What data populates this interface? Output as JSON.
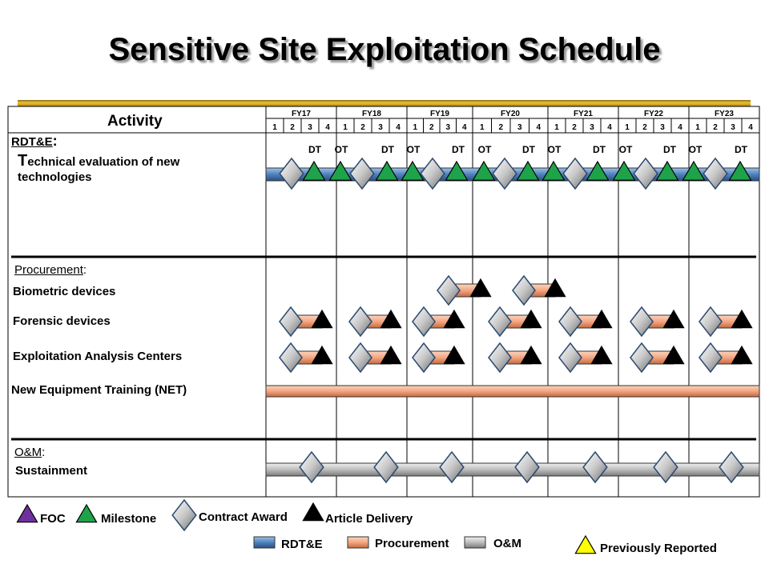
{
  "title": "Sensitive Site Exploitation Schedule",
  "header": {
    "activity_label": "Activity",
    "fiscal_years": [
      "FY17",
      "FY18",
      "FY19",
      "FY20",
      "FY21",
      "FY22",
      "FY23"
    ],
    "quarters": [
      "1",
      "2",
      "3",
      "4"
    ]
  },
  "sections": {
    "rdte": {
      "label": "RDT&E",
      "suffix": ":"
    },
    "procurement": {
      "label": "Procurement",
      "suffix": ":"
    },
    "om": {
      "label": "O&M",
      "suffix": ":"
    }
  },
  "rows": {
    "tech_eval_first": "T",
    "tech_eval_line1": "echnical evaluation of new",
    "tech_eval_line2": "technologies",
    "biometric": "Biometric devices",
    "forensic": "Forensic devices",
    "exploitation": "Exploitation Analysis Centers",
    "net": "New Equipment Training (NET)",
    "sustainment": "Sustainment"
  },
  "test_labels": [
    "DT",
    "OT",
    "DT",
    "OT",
    "DT",
    "OT",
    "DT",
    "OT",
    "DT",
    "OT",
    "DT",
    "OT",
    "DT"
  ],
  "legend": {
    "foc": "FOC",
    "milestone": "Milestone",
    "contract_award": "Contract Award",
    "article_delivery": "Article Delivery",
    "rdte": "RDT&E",
    "procurement": "Procurement",
    "om": "O&M",
    "previously_reported": "Previously Reported"
  },
  "colors": {
    "rdte": "#4f81bd",
    "procurement": "#f4a582",
    "om": "#c0c0c0",
    "milestone": "#1fa34a",
    "foc": "#7030a0",
    "previously_reported": "#ffff00",
    "article_delivery": "#000000",
    "gold": "#d4a017"
  }
}
